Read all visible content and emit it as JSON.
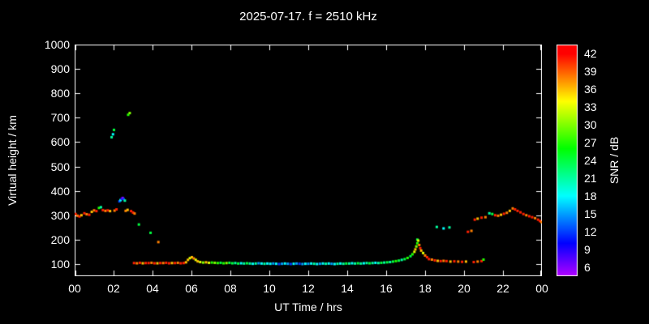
{
  "page": {
    "background": "#000000",
    "text_color": "#ffffff",
    "frame_color": "#ffffff"
  },
  "chart_data": {
    "type": "scatter",
    "title": "2025-07-17. f = 2510 kHz",
    "xlabel": "UT Time / hrs",
    "ylabel": "Virtual height / km",
    "colorbar_label": "SNR / dB",
    "xlim": [
      0,
      24
    ],
    "ylim": [
      50,
      1000
    ],
    "snr_lim": [
      4.5,
      43.5
    ],
    "grid": false,
    "legend_position": "colorbar-right",
    "x_ticks": [
      {
        "v": 0,
        "label": "00"
      },
      {
        "v": 2,
        "label": "02"
      },
      {
        "v": 4,
        "label": "04"
      },
      {
        "v": 6,
        "label": "06"
      },
      {
        "v": 8,
        "label": "08"
      },
      {
        "v": 10,
        "label": "10"
      },
      {
        "v": 12,
        "label": "12"
      },
      {
        "v": 14,
        "label": "14"
      },
      {
        "v": 16,
        "label": "16"
      },
      {
        "v": 18,
        "label": "18"
      },
      {
        "v": 20,
        "label": "20"
      },
      {
        "v": 22,
        "label": "22"
      },
      {
        "v": 24,
        "label": "00"
      }
    ],
    "y_ticks": [
      100,
      200,
      300,
      400,
      500,
      600,
      700,
      800,
      900,
      1000
    ],
    "colorbar_ticks": [
      42,
      39,
      36,
      33,
      30,
      27,
      24,
      21,
      18,
      15,
      12,
      9,
      6
    ],
    "points_format": [
      "ut_hours",
      "virtual_height_km",
      "snr_db"
    ],
    "points": [
      [
        0.05,
        305,
        41
      ],
      [
        0.15,
        298,
        38
      ],
      [
        0.25,
        295,
        41
      ],
      [
        0.35,
        300,
        36
      ],
      [
        0.5,
        308,
        41
      ],
      [
        0.62,
        304,
        38
      ],
      [
        0.75,
        302,
        41
      ],
      [
        0.88,
        314,
        36
      ],
      [
        1.0,
        320,
        38
      ],
      [
        1.12,
        317,
        41
      ],
      [
        1.25,
        330,
        27
      ],
      [
        1.35,
        333,
        21
      ],
      [
        1.45,
        321,
        41
      ],
      [
        1.58,
        318,
        38
      ],
      [
        1.7,
        320,
        41
      ],
      [
        1.82,
        317,
        36
      ],
      [
        2.05,
        319,
        38
      ],
      [
        2.15,
        324,
        41
      ],
      [
        2.62,
        318,
        38
      ],
      [
        2.72,
        322,
        36
      ],
      [
        2.9,
        317,
        41
      ],
      [
        3.0,
        311,
        41
      ],
      [
        3.08,
        307,
        38
      ],
      [
        1.9,
        620,
        21
      ],
      [
        1.97,
        632,
        18
      ],
      [
        2.02,
        650,
        24
      ],
      [
        2.75,
        712,
        27
      ],
      [
        2.83,
        719,
        30
      ],
      [
        2.3,
        357,
        12
      ],
      [
        2.36,
        362,
        18
      ],
      [
        2.42,
        368,
        9
      ],
      [
        2.47,
        371,
        6
      ],
      [
        2.52,
        366,
        12
      ],
      [
        2.58,
        360,
        21
      ],
      [
        3.3,
        262,
        24
      ],
      [
        3.9,
        228,
        24
      ],
      [
        4.3,
        190,
        38
      ],
      [
        3.05,
        104,
        41
      ],
      [
        3.2,
        103,
        38
      ],
      [
        3.35,
        105,
        41
      ],
      [
        3.5,
        103,
        36
      ],
      [
        3.65,
        104,
        41
      ],
      [
        3.8,
        104,
        41
      ],
      [
        3.95,
        105,
        38
      ],
      [
        4.1,
        103,
        41
      ],
      [
        4.25,
        103,
        36
      ],
      [
        4.4,
        104,
        41
      ],
      [
        4.55,
        104,
        38
      ],
      [
        4.7,
        105,
        41
      ],
      [
        4.85,
        103,
        41
      ],
      [
        5.0,
        104,
        36
      ],
      [
        5.15,
        104,
        41
      ],
      [
        5.3,
        105,
        38
      ],
      [
        5.45,
        103,
        41
      ],
      [
        5.6,
        104,
        41
      ],
      [
        5.72,
        107,
        36
      ],
      [
        5.82,
        117,
        36
      ],
      [
        5.92,
        124,
        33
      ],
      [
        6.02,
        128,
        36
      ],
      [
        6.12,
        123,
        38
      ],
      [
        6.22,
        117,
        33
      ],
      [
        6.32,
        111,
        36
      ],
      [
        6.45,
        108,
        33
      ],
      [
        6.6,
        106,
        30
      ],
      [
        6.75,
        107,
        36
      ],
      [
        6.9,
        105,
        33
      ],
      [
        7.05,
        106,
        27
      ],
      [
        7.2,
        105,
        30
      ],
      [
        7.35,
        104,
        27
      ],
      [
        7.5,
        105,
        24
      ],
      [
        7.65,
        103,
        27
      ],
      [
        7.8,
        104,
        30
      ],
      [
        7.95,
        105,
        24
      ],
      [
        8.1,
        103,
        24
      ],
      [
        8.25,
        104,
        21
      ],
      [
        8.4,
        102,
        24
      ],
      [
        8.55,
        103,
        18
      ],
      [
        8.7,
        102,
        21
      ],
      [
        8.85,
        103,
        24
      ],
      [
        9.0,
        102,
        21
      ],
      [
        9.15,
        101,
        18
      ],
      [
        9.3,
        102,
        21
      ],
      [
        9.45,
        103,
        15
      ],
      [
        9.6,
        102,
        18
      ],
      [
        9.75,
        101,
        21
      ],
      [
        9.9,
        102,
        18
      ],
      [
        10.05,
        101,
        18
      ],
      [
        10.2,
        102,
        15
      ],
      [
        10.35,
        101,
        18
      ],
      [
        10.5,
        100,
        12
      ],
      [
        10.65,
        101,
        15
      ],
      [
        10.8,
        102,
        18
      ],
      [
        10.95,
        101,
        15
      ],
      [
        11.1,
        100,
        12
      ],
      [
        11.25,
        101,
        18
      ],
      [
        11.4,
        102,
        15
      ],
      [
        11.55,
        101,
        12
      ],
      [
        11.7,
        100,
        15
      ],
      [
        11.85,
        101,
        18
      ],
      [
        12.0,
        101,
        15
      ],
      [
        12.15,
        102,
        18
      ],
      [
        12.3,
        101,
        21
      ],
      [
        12.45,
        100,
        18
      ],
      [
        12.6,
        101,
        15
      ],
      [
        12.75,
        102,
        18
      ],
      [
        12.9,
        101,
        21
      ],
      [
        13.05,
        102,
        18
      ],
      [
        13.2,
        101,
        15
      ],
      [
        13.35,
        100,
        18
      ],
      [
        13.5,
        101,
        21
      ],
      [
        13.65,
        102,
        18
      ],
      [
        13.8,
        101,
        21
      ],
      [
        13.95,
        102,
        24
      ],
      [
        14.1,
        102,
        21
      ],
      [
        14.25,
        103,
        18
      ],
      [
        14.4,
        102,
        21
      ],
      [
        14.55,
        103,
        24
      ],
      [
        14.7,
        102,
        21
      ],
      [
        14.85,
        103,
        18
      ],
      [
        15.0,
        104,
        21
      ],
      [
        15.15,
        103,
        24
      ],
      [
        15.3,
        104,
        21
      ],
      [
        15.45,
        105,
        18
      ],
      [
        15.6,
        104,
        21
      ],
      [
        15.75,
        105,
        24
      ],
      [
        15.9,
        106,
        21
      ],
      [
        16.05,
        107,
        24
      ],
      [
        16.2,
        108,
        21
      ],
      [
        16.35,
        110,
        24
      ],
      [
        16.5,
        112,
        27
      ],
      [
        16.65,
        114,
        24
      ],
      [
        16.8,
        117,
        21
      ],
      [
        16.95,
        120,
        24
      ],
      [
        17.1,
        125,
        27
      ],
      [
        17.25,
        132,
        24
      ],
      [
        17.35,
        140,
        27
      ],
      [
        17.45,
        150,
        33
      ],
      [
        17.5,
        160,
        36
      ],
      [
        17.55,
        172,
        30
      ],
      [
        17.6,
        185,
        27
      ],
      [
        17.6,
        200,
        24
      ],
      [
        17.65,
        196,
        33
      ],
      [
        17.7,
        178,
        38
      ],
      [
        17.75,
        165,
        41
      ],
      [
        17.8,
        155,
        36
      ],
      [
        17.9,
        145,
        33
      ],
      [
        18.0,
        135,
        38
      ],
      [
        18.1,
        128,
        41
      ],
      [
        18.2,
        120,
        41
      ],
      [
        18.35,
        118,
        38
      ],
      [
        18.5,
        115,
        41
      ],
      [
        18.65,
        113,
        36
      ],
      [
        18.8,
        112,
        41
      ],
      [
        18.95,
        113,
        38
      ],
      [
        19.1,
        112,
        41
      ],
      [
        19.3,
        110,
        36
      ],
      [
        19.5,
        111,
        41
      ],
      [
        19.7,
        110,
        38
      ],
      [
        19.9,
        109,
        41
      ],
      [
        20.1,
        110,
        36
      ],
      [
        20.5,
        108,
        41
      ],
      [
        20.7,
        110,
        38
      ],
      [
        20.9,
        112,
        41
      ],
      [
        21.0,
        118,
        27
      ],
      [
        18.6,
        252,
        21
      ],
      [
        18.95,
        246,
        18
      ],
      [
        19.25,
        250,
        21
      ],
      [
        20.2,
        232,
        41
      ],
      [
        20.38,
        236,
        38
      ],
      [
        20.55,
        282,
        41
      ],
      [
        20.7,
        286,
        36
      ],
      [
        20.9,
        290,
        41
      ],
      [
        21.1,
        292,
        38
      ],
      [
        21.3,
        308,
        21
      ],
      [
        21.45,
        305,
        24
      ],
      [
        21.6,
        300,
        41
      ],
      [
        21.75,
        298,
        38
      ],
      [
        21.9,
        302,
        36
      ],
      [
        22.05,
        306,
        41
      ],
      [
        22.2,
        310,
        38
      ],
      [
        22.35,
        318,
        36
      ],
      [
        22.5,
        328,
        38
      ],
      [
        22.62,
        324,
        41
      ],
      [
        22.75,
        318,
        41
      ],
      [
        22.9,
        312,
        41
      ],
      [
        23.05,
        305,
        41
      ],
      [
        23.2,
        300,
        38
      ],
      [
        23.35,
        296,
        41
      ],
      [
        23.5,
        292,
        41
      ],
      [
        23.65,
        288,
        38
      ],
      [
        23.8,
        282,
        41
      ],
      [
        23.9,
        276,
        41
      ],
      [
        23.98,
        272,
        38
      ]
    ]
  }
}
